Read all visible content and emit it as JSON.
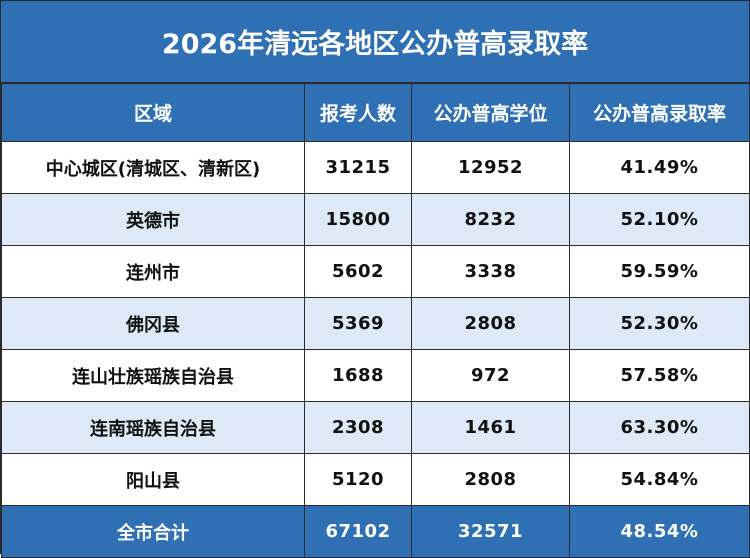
{
  "title": "2026年清远各地区公办普高录取率",
  "headers": [
    "区域",
    "报考人数",
    "公办普高学位",
    "公办普高录取率"
  ],
  "rows": [
    {
      "region": "中心城区(清城区、清新区)",
      "applicants": "31215",
      "seats": "12952",
      "rate": "41.49%"
    },
    {
      "region": "英德市",
      "applicants": "15800",
      "seats": "8232",
      "rate": "52.10%"
    },
    {
      "region": "连州市",
      "applicants": "5602",
      "seats": "3338",
      "rate": "59.59%"
    },
    {
      "region": "佛冈县",
      "applicants": "5369",
      "seats": "2808",
      "rate": "52.30%"
    },
    {
      "region": "连山壮族瑶族自治县",
      "applicants": "1688",
      "seats": "972",
      "rate": "57.58%"
    },
    {
      "region": "连南瑶族自治县",
      "applicants": "2308",
      "seats": "1461",
      "rate": "63.30%"
    },
    {
      "region": "阳山县",
      "applicants": "5120",
      "seats": "2808",
      "rate": "54.84%"
    }
  ],
  "total": {
    "region": "全市合计",
    "applicants": "67102",
    "seats": "32571",
    "rate": "48.54%"
  },
  "colors": {
    "header_bg": "#2f6fb3",
    "stripe_bg": "#dde9f6",
    "border": "#2a2a2a"
  }
}
